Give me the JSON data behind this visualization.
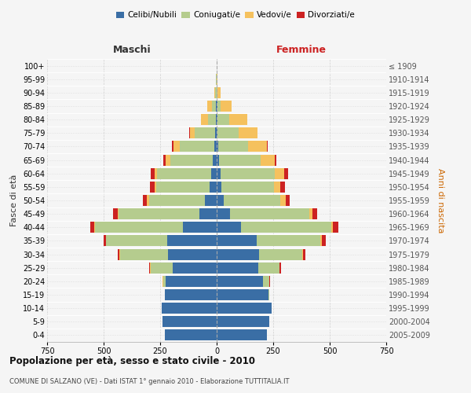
{
  "age_groups": [
    "100+",
    "95-99",
    "90-94",
    "85-89",
    "80-84",
    "75-79",
    "70-74",
    "65-69",
    "60-64",
    "55-59",
    "50-54",
    "45-49",
    "40-44",
    "35-39",
    "30-34",
    "25-29",
    "20-24",
    "15-19",
    "10-14",
    "5-9",
    "0-4"
  ],
  "birth_years": [
    "≤ 1909",
    "1910-1914",
    "1915-1919",
    "1920-1924",
    "1925-1929",
    "1930-1934",
    "1935-1939",
    "1940-1944",
    "1945-1949",
    "1950-1954",
    "1955-1959",
    "1960-1964",
    "1965-1969",
    "1970-1974",
    "1975-1979",
    "1980-1984",
    "1985-1989",
    "1990-1994",
    "1995-1999",
    "2000-2004",
    "2005-2009"
  ],
  "colors": {
    "celibi": "#3a6ea5",
    "coniugati": "#b5cc8e",
    "vedovi": "#f5c15e",
    "divorziati": "#cc2222"
  },
  "males": {
    "celibi": [
      0,
      0,
      1,
      2,
      4,
      6,
      12,
      18,
      25,
      30,
      52,
      75,
      150,
      220,
      215,
      195,
      225,
      228,
      242,
      238,
      228
    ],
    "coniugati": [
      0,
      2,
      5,
      18,
      35,
      90,
      150,
      188,
      238,
      238,
      248,
      360,
      388,
      268,
      212,
      98,
      12,
      2,
      0,
      2,
      0
    ],
    "vedovi": [
      0,
      1,
      5,
      20,
      30,
      22,
      28,
      18,
      12,
      8,
      8,
      4,
      4,
      2,
      2,
      2,
      2,
      0,
      0,
      0,
      0
    ],
    "divorziati": [
      0,
      0,
      0,
      0,
      0,
      2,
      8,
      12,
      18,
      18,
      18,
      18,
      18,
      10,
      8,
      4,
      2,
      0,
      0,
      0,
      0
    ]
  },
  "females": {
    "celibi": [
      0,
      0,
      1,
      2,
      3,
      5,
      8,
      12,
      18,
      20,
      30,
      58,
      108,
      178,
      188,
      185,
      205,
      228,
      242,
      232,
      222
    ],
    "coniugati": [
      0,
      1,
      4,
      15,
      52,
      92,
      132,
      182,
      238,
      232,
      252,
      350,
      398,
      282,
      192,
      92,
      28,
      5,
      2,
      2,
      0
    ],
    "vedovi": [
      0,
      2,
      12,
      50,
      82,
      82,
      82,
      62,
      42,
      28,
      22,
      16,
      8,
      4,
      2,
      2,
      0,
      0,
      0,
      0,
      0
    ],
    "divorziati": [
      0,
      0,
      0,
      0,
      0,
      0,
      4,
      8,
      18,
      22,
      18,
      20,
      25,
      18,
      10,
      5,
      2,
      0,
      0,
      0,
      0
    ]
  },
  "title": "Popolazione per età, sesso e stato civile - 2010",
  "subtitle": "COMUNE DI SALZANO (VE) - Dati ISTAT 1° gennaio 2010 - Elaborazione TUTTITALIA.IT",
  "xlabel_left": "Maschi",
  "xlabel_right": "Femmine",
  "ylabel_left": "Fasce di età",
  "ylabel_right": "Anni di nascita",
  "xlim": 750,
  "background_color": "#f5f5f5",
  "grid_color": "#cccccc",
  "legend_labels": [
    "Celibi/Nubili",
    "Coniugati/e",
    "Vedovi/e",
    "Divorziati/e"
  ]
}
